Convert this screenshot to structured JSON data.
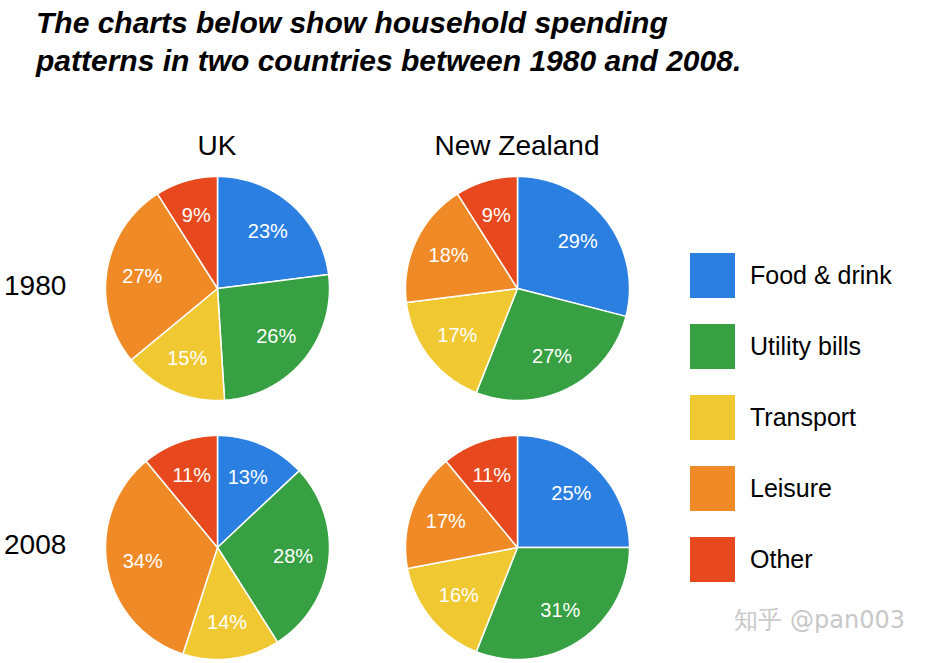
{
  "title": "The charts below show household spending\npatterns in two countries between 1980 and 2008.",
  "watermark": "知乎 @pan003",
  "chart_data": [
    {
      "type": "pie",
      "title": "UK",
      "subtitle": "1980",
      "categories": [
        "Food & drink",
        "Utility bills",
        "Transport",
        "Leisure",
        "Other"
      ],
      "values": [
        23,
        26,
        15,
        27,
        9
      ],
      "value_labels": [
        "23%",
        "26%",
        "15%",
        "27%",
        "9%"
      ],
      "colors": [
        "#2a7fe0",
        "#36a042",
        "#f0c832",
        "#f08a26",
        "#e8481e"
      ],
      "data_labels": true,
      "legend": "right"
    },
    {
      "type": "pie",
      "title": "New Zealand",
      "subtitle": "1980",
      "categories": [
        "Food & drink",
        "Utility bills",
        "Transport",
        "Leisure",
        "Other"
      ],
      "values": [
        29,
        27,
        17,
        18,
        9
      ],
      "value_labels": [
        "29%",
        "27%",
        "17%",
        "18%",
        "9%"
      ],
      "colors": [
        "#2a7fe0",
        "#36a042",
        "#f0c832",
        "#f08a26",
        "#e8481e"
      ],
      "data_labels": true,
      "legend": "right"
    },
    {
      "type": "pie",
      "title": "UK",
      "subtitle": "2008",
      "categories": [
        "Food & drink",
        "Utility bills",
        "Transport",
        "Leisure",
        "Other"
      ],
      "values": [
        13,
        28,
        14,
        34,
        11
      ],
      "value_labels": [
        "13%",
        "28%",
        "14%",
        "34%",
        "11%"
      ],
      "colors": [
        "#2a7fe0",
        "#36a042",
        "#f0c832",
        "#f08a26",
        "#e8481e"
      ],
      "data_labels": true,
      "legend": "right"
    },
    {
      "type": "pie",
      "title": "New Zealand",
      "subtitle": "2008",
      "categories": [
        "Food & drink",
        "Utility bills",
        "Transport",
        "Leisure",
        "Other"
      ],
      "values": [
        25,
        31,
        16,
        17,
        11
      ],
      "value_labels": [
        "25%",
        "31%",
        "16%",
        "17%",
        "11%"
      ],
      "colors": [
        "#2a7fe0",
        "#36a042",
        "#f0c832",
        "#f08a26",
        "#e8481e"
      ],
      "data_labels": true,
      "legend": "right"
    }
  ]
}
